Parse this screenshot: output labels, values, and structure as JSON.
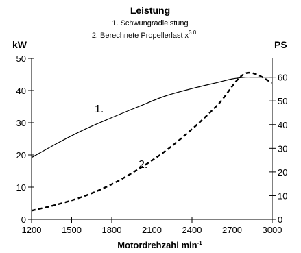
{
  "chart_data": {
    "type": "line",
    "title": "Leistung",
    "legend": [
      "1. Schwungradleistung",
      "2. Berechnete Propellerlast x"
    ],
    "legend_superscript": "3.0",
    "xlabel": "Motordrehzahl min",
    "xlabel_superscript": "-1",
    "ylabel_left": "kW",
    "ylabel_right": "PS",
    "xlim": [
      1200,
      3000
    ],
    "ylim_left": [
      0,
      50
    ],
    "ylim_right": [
      0,
      68
    ],
    "xticks": [
      "1200",
      "1500",
      "1800",
      "2100",
      "2400",
      "2700",
      "3000"
    ],
    "yticks_left": [
      "0",
      "10",
      "20",
      "30",
      "40",
      "50"
    ],
    "yticks_right": [
      "0",
      "10",
      "20",
      "30",
      "40",
      "50",
      "60"
    ],
    "grid": false,
    "series": [
      {
        "name": "1.",
        "style": "solid",
        "x": [
          1200,
          1400,
          1600,
          1800,
          2000,
          2200,
          2400,
          2600,
          2700,
          2800,
          2850,
          3000
        ],
        "y": [
          19.2,
          23.8,
          28.0,
          31.6,
          35.0,
          38.3,
          40.6,
          42.6,
          43.6,
          44.1,
          44.1,
          44.1
        ]
      },
      {
        "name": "2.",
        "style": "dashed",
        "x": [
          1200,
          1400,
          1600,
          1800,
          2000,
          2200,
          2400,
          2600,
          2800,
          3000
        ],
        "y": [
          2.7,
          4.7,
          7.3,
          10.9,
          15.6,
          21.2,
          28.0,
          35.9,
          45.3,
          42.4
        ]
      }
    ]
  }
}
